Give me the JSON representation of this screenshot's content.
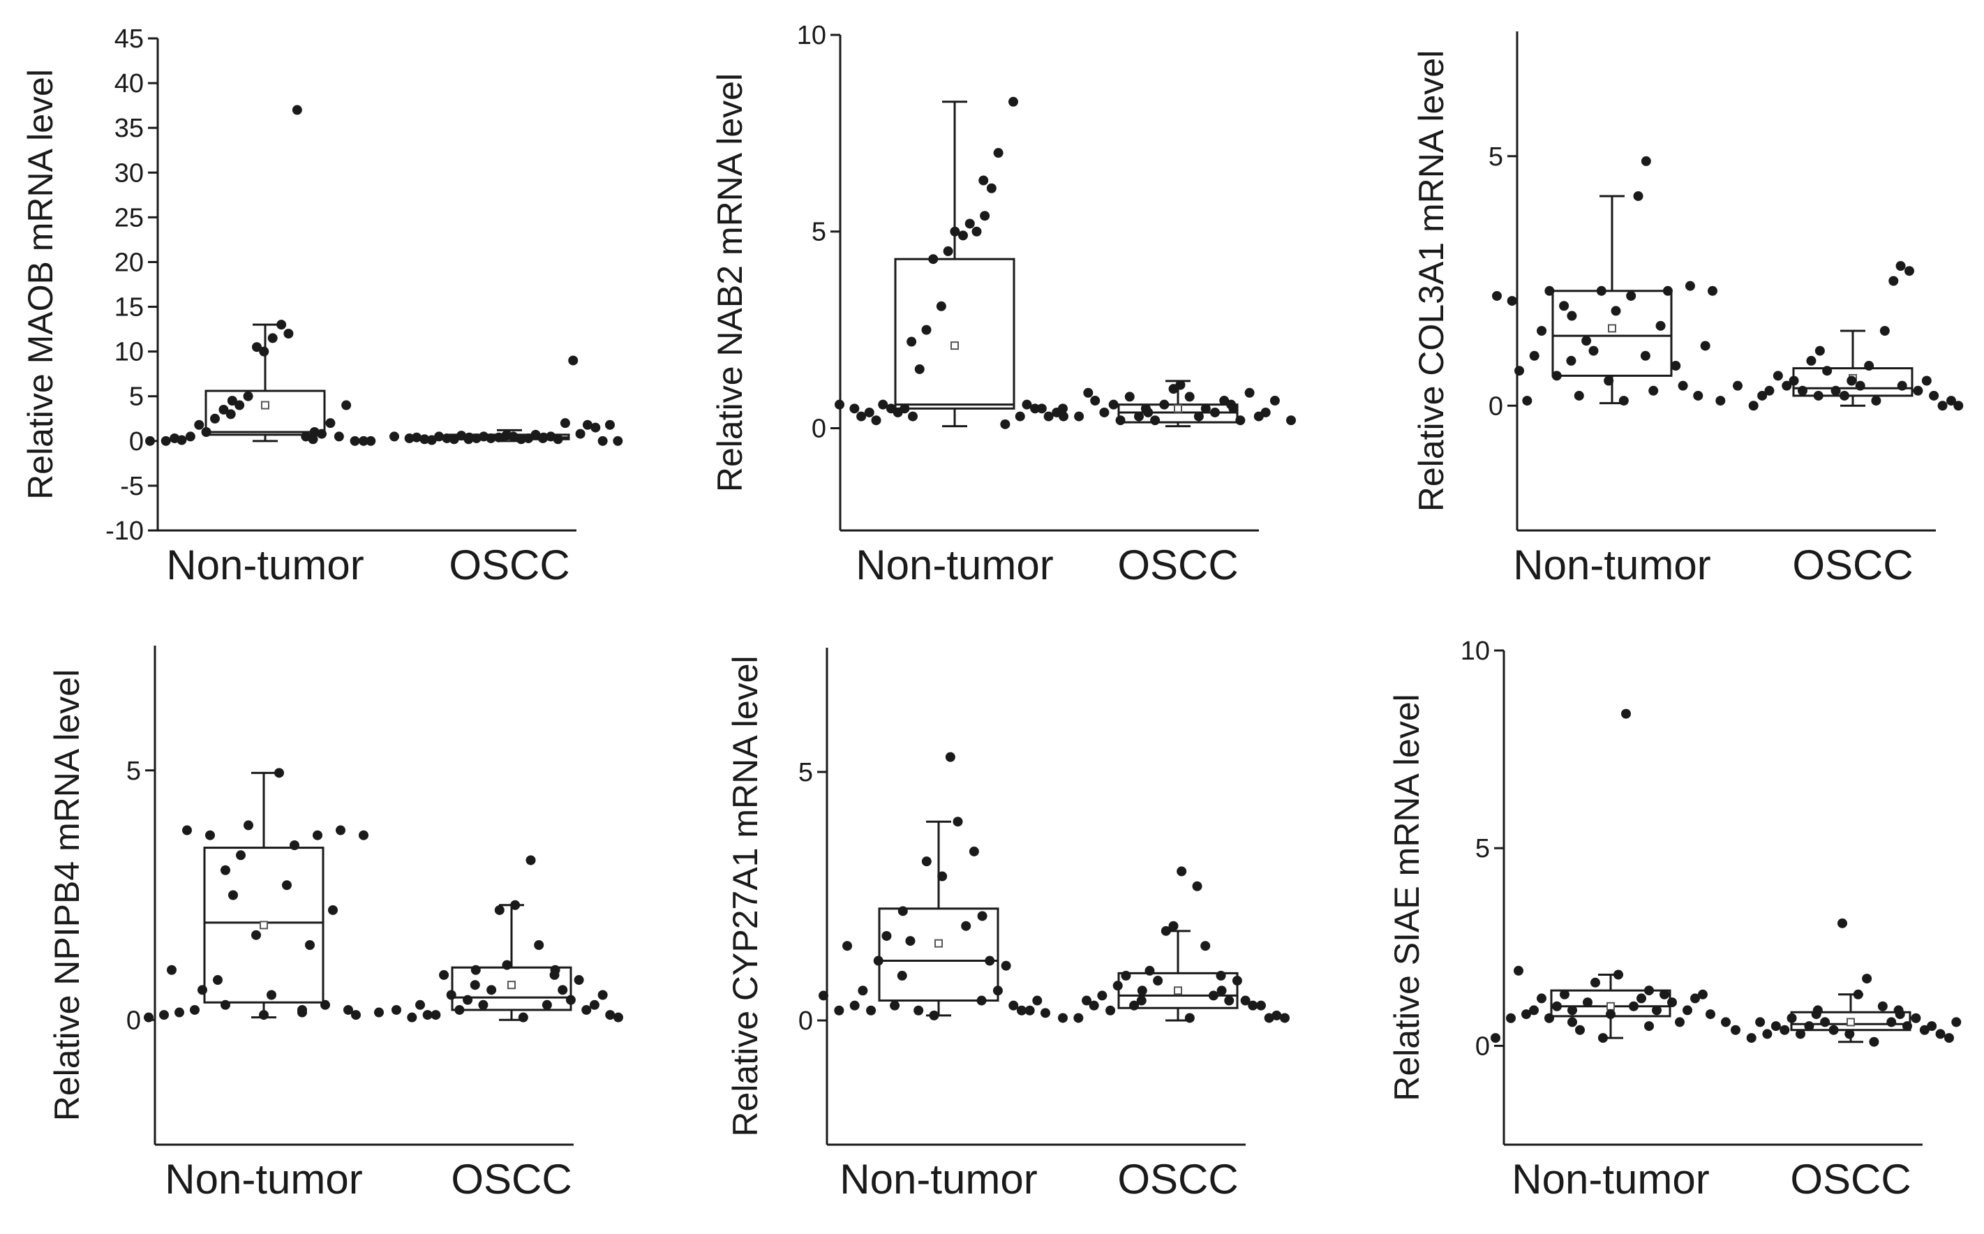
{
  "chart_data": [
    {
      "type": "box",
      "title": "",
      "xlabel": "",
      "ylabel": "Relative MAOB mRNA level",
      "categories": [
        "Non-tumor",
        "OSCC"
      ],
      "ylim": [
        -10,
        45
      ],
      "yticks": [
        -10,
        -5,
        0,
        5,
        10,
        15,
        20,
        25,
        30,
        35,
        40,
        45
      ],
      "boxes": [
        {
          "group": "Non-tumor",
          "q1": 0.7,
          "median": 1.0,
          "q3": 5.6,
          "whisker_low": 0.0,
          "whisker_high": 13.0,
          "mean": 4.0
        },
        {
          "group": "OSCC",
          "q1": 0.2,
          "median": 0.4,
          "q3": 0.7,
          "whisker_low": 0.0,
          "whisker_high": 1.2,
          "mean": 0.5
        }
      ],
      "points": [
        [
          0.0,
          0.0,
          0.1,
          0.3,
          0.5,
          1.0,
          1.8,
          2.5,
          3.0,
          3.5,
          4.0,
          4.5,
          5.0,
          10.0,
          10.5,
          11.5,
          12.0,
          13.0,
          37.0,
          0.2,
          0.5,
          0.8,
          1.0,
          2.0,
          4.0,
          0.5,
          0.0,
          0.0,
          0.0
        ],
        [
          0.5,
          0.3,
          0.2,
          0.4,
          0.1,
          0.3,
          0.5,
          0.2,
          0.4,
          0.6,
          0.3,
          0.2,
          0.5,
          0.4,
          0.3,
          0.6,
          0.2,
          0.5,
          0.3,
          0.4,
          0.7,
          0.5,
          0.3,
          0.2,
          9.0,
          2.0,
          0.8,
          1.5,
          1.8,
          0.0,
          0.0,
          1.8
        ]
      ]
    },
    {
      "type": "box",
      "title": "",
      "xlabel": "",
      "ylabel": "Relative NAB2 mRNA level",
      "categories": [
        "Non-tumor",
        "OSCC"
      ],
      "ylim": [
        -2.6,
        10
      ],
      "yticks": [
        0,
        5,
        10
      ],
      "boxes": [
        {
          "group": "Non-tumor",
          "q1": 0.5,
          "median": 0.6,
          "q3": 4.3,
          "whisker_low": 0.05,
          "whisker_high": 8.3,
          "mean": 2.1
        },
        {
          "group": "OSCC",
          "q1": 0.15,
          "median": 0.4,
          "q3": 0.6,
          "whisker_low": 0.05,
          "whisker_high": 1.2,
          "mean": 0.5
        }
      ],
      "points": [
        [
          0.6,
          0.5,
          0.4,
          0.3,
          0.2,
          0.5,
          0.6,
          0.4,
          0.3,
          0.5,
          1.5,
          2.2,
          2.5,
          3.1,
          4.3,
          4.5,
          4.9,
          5.0,
          5.2,
          5.4,
          5.0,
          6.1,
          6.3,
          7.0,
          8.3,
          0.1,
          0.3,
          0.5,
          0.6,
          0.5,
          0.4,
          0.3,
          0.3
        ],
        [
          0.5,
          0.3,
          0.7,
          0.9,
          0.4,
          0.2,
          0.6,
          0.8,
          0.5,
          0.3,
          0.2,
          0.4,
          0.6,
          1.1,
          1.0,
          0.8,
          0.5,
          0.3,
          0.4,
          0.6,
          0.7,
          0.2,
          0.5,
          0.9,
          0.4,
          0.3,
          0.7,
          0.2
        ]
      ]
    },
    {
      "type": "box",
      "title": "",
      "xlabel": "",
      "ylabel": "Relative COL3A1 mRNA level",
      "categories": [
        "Non-tumor",
        "OSCC"
      ],
      "ylim": [
        -2.5,
        7.5
      ],
      "yticks": [
        0,
        5
      ],
      "boxes": [
        {
          "group": "Non-tumor",
          "q1": 0.6,
          "median": 1.4,
          "q3": 2.3,
          "whisker_low": 0.05,
          "whisker_high": 4.2,
          "mean": 1.55
        },
        {
          "group": "OSCC",
          "q1": 0.2,
          "median": 0.35,
          "q3": 0.75,
          "whisker_low": 0.0,
          "whisker_high": 1.5,
          "mean": 0.55
        }
      ],
      "points": [
        [
          2.2,
          2.1,
          0.1,
          0.7,
          1.0,
          2.3,
          1.5,
          0.6,
          1.8,
          2.0,
          0.2,
          0.9,
          1.3,
          2.3,
          1.1,
          0.5,
          0.1,
          1.9,
          2.2,
          4.9,
          4.2,
          0.3,
          1.0,
          1.6,
          0.8,
          2.3,
          0.4,
          0.2,
          2.4,
          1.2,
          0.1,
          2.3
        ],
        [
          0.4,
          0.0,
          0.3,
          0.2,
          0.6,
          0.5,
          0.4,
          0.3,
          0.2,
          0.9,
          0.7,
          1.1,
          0.3,
          0.5,
          0.2,
          0.4,
          0.1,
          0.8,
          1.5,
          2.8,
          2.5,
          2.7,
          0.4,
          0.3,
          0.2,
          0.5,
          0.0,
          0.0,
          0.1
        ]
      ]
    },
    {
      "type": "box",
      "title": "",
      "xlabel": "",
      "ylabel": "Relative NPIPB4 mRNA level",
      "categories": [
        "Non-tumor",
        "OSCC"
      ],
      "ylim": [
        -2.5,
        7.5
      ],
      "yticks": [
        0,
        5
      ],
      "boxes": [
        {
          "group": "Non-tumor",
          "q1": 0.35,
          "median": 1.95,
          "q3": 3.45,
          "whisker_low": 0.05,
          "whisker_high": 4.95,
          "mean": 1.9
        },
        {
          "group": "OSCC",
          "q1": 0.2,
          "median": 0.45,
          "q3": 1.05,
          "whisker_low": 0.0,
          "whisker_high": 2.3,
          "mean": 0.7
        }
      ],
      "points": [
        [
          0.05,
          0.1,
          0.15,
          1.0,
          3.8,
          0.6,
          0.2,
          3.7,
          3.0,
          0.8,
          2.5,
          0.3,
          3.3,
          1.7,
          3.9,
          0.1,
          4.95,
          0.5,
          2.7,
          0.2,
          3.5,
          1.5,
          0.15,
          3.7,
          2.2,
          0.3,
          3.8,
          0.1,
          0.2,
          3.7,
          0.15
        ],
        [
          0.2,
          0.05,
          0.1,
          0.3,
          0.1,
          0.5,
          0.9,
          0.2,
          0.7,
          0.4,
          0.3,
          1.0,
          0.6,
          1.1,
          2.2,
          2.3,
          3.2,
          0.05,
          1.5,
          0.9,
          0.3,
          0.6,
          1.0,
          0.4,
          0.2,
          0.8,
          0.3,
          0.1,
          0.5,
          0.05
        ]
      ]
    },
    {
      "type": "box",
      "title": "",
      "xlabel": "",
      "ylabel": "Relative CYP27A1 mRNA level",
      "categories": [
        "Non-tumor",
        "OSCC"
      ],
      "ylim": [
        -2.5,
        7.5
      ],
      "yticks": [
        0,
        5
      ],
      "boxes": [
        {
          "group": "Non-tumor",
          "q1": 0.4,
          "median": 1.2,
          "q3": 2.25,
          "whisker_low": 0.1,
          "whisker_high": 4.0,
          "mean": 1.55
        },
        {
          "group": "OSCC",
          "q1": 0.25,
          "median": 0.5,
          "q3": 0.95,
          "whisker_low": 0.0,
          "whisker_high": 1.8,
          "mean": 0.6
        }
      ],
      "points": [
        [
          0.5,
          0.2,
          0.3,
          1.5,
          0.6,
          1.2,
          0.2,
          1.7,
          0.9,
          0.3,
          1.6,
          2.2,
          0.2,
          0.1,
          3.2,
          2.9,
          4.0,
          5.3,
          1.9,
          0.4,
          3.4,
          1.2,
          2.1,
          0.6,
          0.3,
          1.1,
          0.2,
          0.4,
          0.2,
          0.15
        ],
        [
          0.05,
          0.05,
          0.3,
          0.4,
          0.5,
          0.7,
          0.2,
          0.9,
          0.4,
          0.3,
          1.0,
          0.6,
          0.8,
          1.9,
          1.8,
          3.0,
          2.7,
          0.05,
          1.5,
          0.9,
          0.5,
          0.4,
          0.6,
          0.8,
          0.3,
          0.4,
          0.3,
          0.1,
          0.05,
          0.05
        ]
      ]
    },
    {
      "type": "box",
      "title": "",
      "xlabel": "",
      "ylabel": "Relative SIAE mRNA level",
      "categories": [
        "Non-tumor",
        "OSCC"
      ],
      "ylim": [
        -2.5,
        10
      ],
      "yticks": [
        0,
        5,
        10
      ],
      "boxes": [
        {
          "group": "Non-tumor",
          "q1": 0.75,
          "median": 1.0,
          "q3": 1.4,
          "whisker_low": 0.2,
          "whisker_high": 1.8,
          "mean": 1.0
        },
        {
          "group": "OSCC",
          "q1": 0.4,
          "median": 0.55,
          "q3": 0.85,
          "whisker_low": 0.1,
          "whisker_high": 1.3,
          "mean": 0.6
        }
      ],
      "points": [
        [
          0.2,
          0.7,
          0.8,
          1.9,
          0.9,
          0.7,
          1.2,
          1.0,
          0.6,
          1.3,
          0.4,
          0.9,
          1.1,
          0.2,
          1.6,
          0.8,
          8.4,
          1.8,
          1.0,
          0.5,
          1.2,
          0.9,
          1.4,
          1.3,
          0.6,
          1.1,
          0.9,
          1.3,
          1.2,
          0.8,
          0.6
        ],
        [
          0.4,
          0.2,
          0.3,
          0.6,
          0.5,
          0.7,
          0.4,
          0.3,
          0.8,
          0.5,
          0.6,
          0.9,
          0.4,
          0.3,
          3.1,
          1.3,
          0.1,
          1.7,
          1.0,
          0.9,
          0.6,
          0.5,
          0.8,
          0.7,
          0.5,
          0.4,
          0.3,
          0.6,
          0.2
        ]
      ]
    }
  ]
}
